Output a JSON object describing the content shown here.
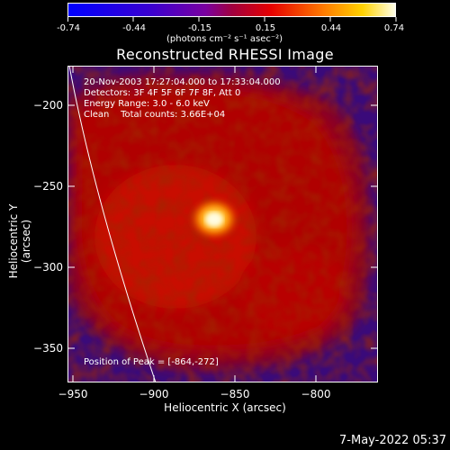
{
  "colorbar": {
    "ticks": [
      "-0.74",
      "-0.44",
      "-0.15",
      "0.15",
      "0.44",
      "0.74"
    ],
    "unit": "(photons cm⁻² s⁻¹ asec⁻²)"
  },
  "plot": {
    "title": "Reconstructed RHESSI Image",
    "info": [
      "20-Nov-2003 17:27:04.000 to 17:33:04.000",
      "Detectors: 3F 4F 5F 6F 7F 8F, Att 0",
      "Energy Range: 3.0 - 6.0 keV",
      "Clean    Total counts: 3.66E+04"
    ],
    "peak_label": "Position of Peak = [-864,-272]",
    "xlabel": "Heliocentric X (arcsec)",
    "ylabel": "Heliocentric Y (arcsec)",
    "xticks": [
      "−950",
      "−900",
      "−850",
      "−800"
    ],
    "yticks": [
      "−200",
      "−250",
      "−300",
      "−350"
    ]
  },
  "timestamp": "7-May-2022 05:37"
}
